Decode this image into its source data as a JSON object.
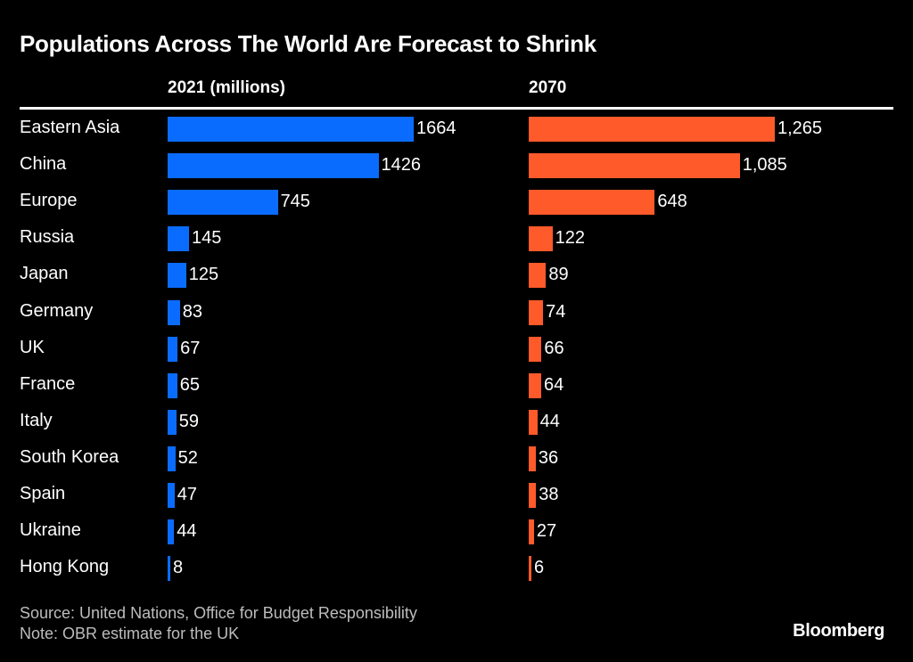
{
  "chart_data": {
    "type": "bar",
    "orientation": "horizontal",
    "title": "Populations Across The World Are Forecast to Shrink",
    "categories": [
      "Eastern Asia",
      "China",
      "Europe",
      "Russia",
      "Japan",
      "Germany",
      "UK",
      "France",
      "Italy",
      "South Korea",
      "Spain",
      "Ukraine",
      "Hong Kong"
    ],
    "series": [
      {
        "name": "2021 (millions)",
        "color": "#0a6cff",
        "values": [
          1664,
          1426,
          745,
          145,
          125,
          83,
          67,
          65,
          59,
          52,
          47,
          44,
          8
        ],
        "labels": [
          "1664",
          "1426",
          "745",
          "145",
          "125",
          "83",
          "67",
          "65",
          "59",
          "52",
          "47",
          "44",
          "8"
        ]
      },
      {
        "name": "2070",
        "color": "#ff5a2a",
        "values": [
          1265,
          1085,
          648,
          122,
          89,
          74,
          66,
          64,
          44,
          36,
          38,
          27,
          6
        ],
        "labels": [
          "1,265",
          "1,085",
          "648",
          "122",
          "89",
          "74",
          "66",
          "64",
          "44",
          "36",
          "38",
          "27",
          "6"
        ]
      }
    ],
    "grid": false
  },
  "footer": {
    "source": "Source: United Nations, Office for Budget Responsibility",
    "note": "Note: OBR estimate for the UK",
    "logo": "Bloomberg"
  }
}
